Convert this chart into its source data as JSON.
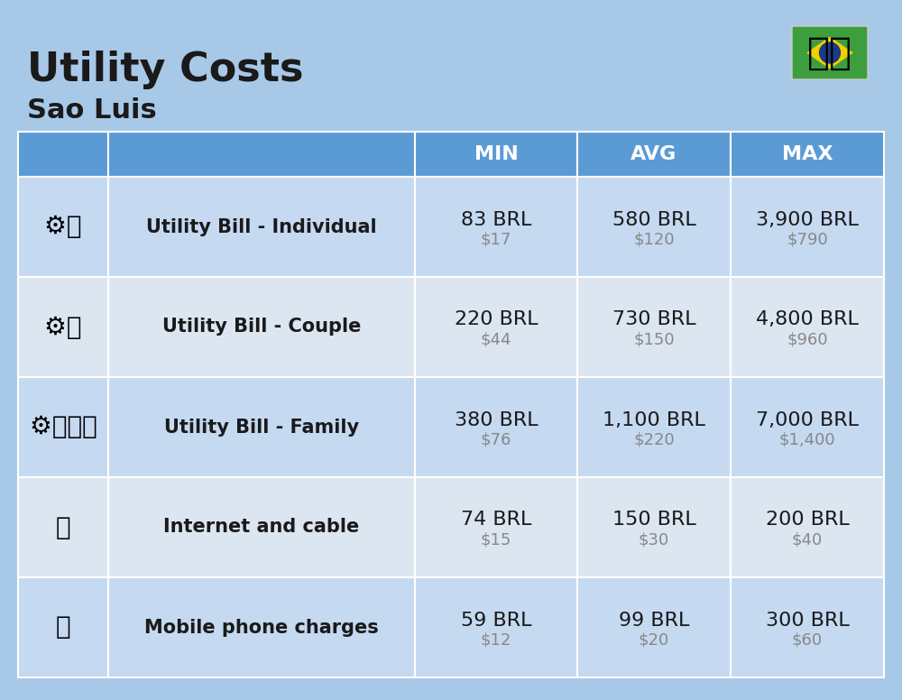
{
  "title": "Utility Costs",
  "subtitle": "Sao Luis",
  "background_color": "#a8c8e8",
  "header_bg_color": "#5b9bd5",
  "header_text_color": "#ffffff",
  "row_bg_color_1": "#c5d9f1",
  "row_bg_color_2": "#dce6f1",
  "col_line_color": "#ffffff",
  "header_labels": [
    "",
    "",
    "MIN",
    "AVG",
    "MAX"
  ],
  "rows": [
    {
      "label": "Utility Bill - Individual",
      "min_brl": "83 BRL",
      "min_usd": "$17",
      "avg_brl": "580 BRL",
      "avg_usd": "$120",
      "max_brl": "3,900 BRL",
      "max_usd": "$790"
    },
    {
      "label": "Utility Bill - Couple",
      "min_brl": "220 BRL",
      "min_usd": "$44",
      "avg_brl": "730 BRL",
      "avg_usd": "$150",
      "max_brl": "4,800 BRL",
      "max_usd": "$960"
    },
    {
      "label": "Utility Bill - Family",
      "min_brl": "380 BRL",
      "min_usd": "$76",
      "avg_brl": "1,100 BRL",
      "avg_usd": "$220",
      "max_brl": "7,000 BRL",
      "max_usd": "$1,400"
    },
    {
      "label": "Internet and cable",
      "min_brl": "74 BRL",
      "min_usd": "$15",
      "avg_brl": "150 BRL",
      "avg_usd": "$30",
      "max_brl": "200 BRL",
      "max_usd": "$40"
    },
    {
      "label": "Mobile phone charges",
      "min_brl": "59 BRL",
      "min_usd": "$12",
      "avg_brl": "99 BRL",
      "avg_usd": "$20",
      "max_brl": "300 BRL",
      "max_usd": "$60"
    }
  ],
  "title_fontsize": 32,
  "subtitle_fontsize": 22,
  "header_fontsize": 16,
  "label_fontsize": 15,
  "value_fontsize": 16,
  "usd_fontsize": 13,
  "usd_color": "#888888",
  "title_color": "#1a1a1a",
  "subtitle_color": "#1a1a1a",
  "label_color": "#1a1a1a",
  "value_color": "#1a1a1a"
}
